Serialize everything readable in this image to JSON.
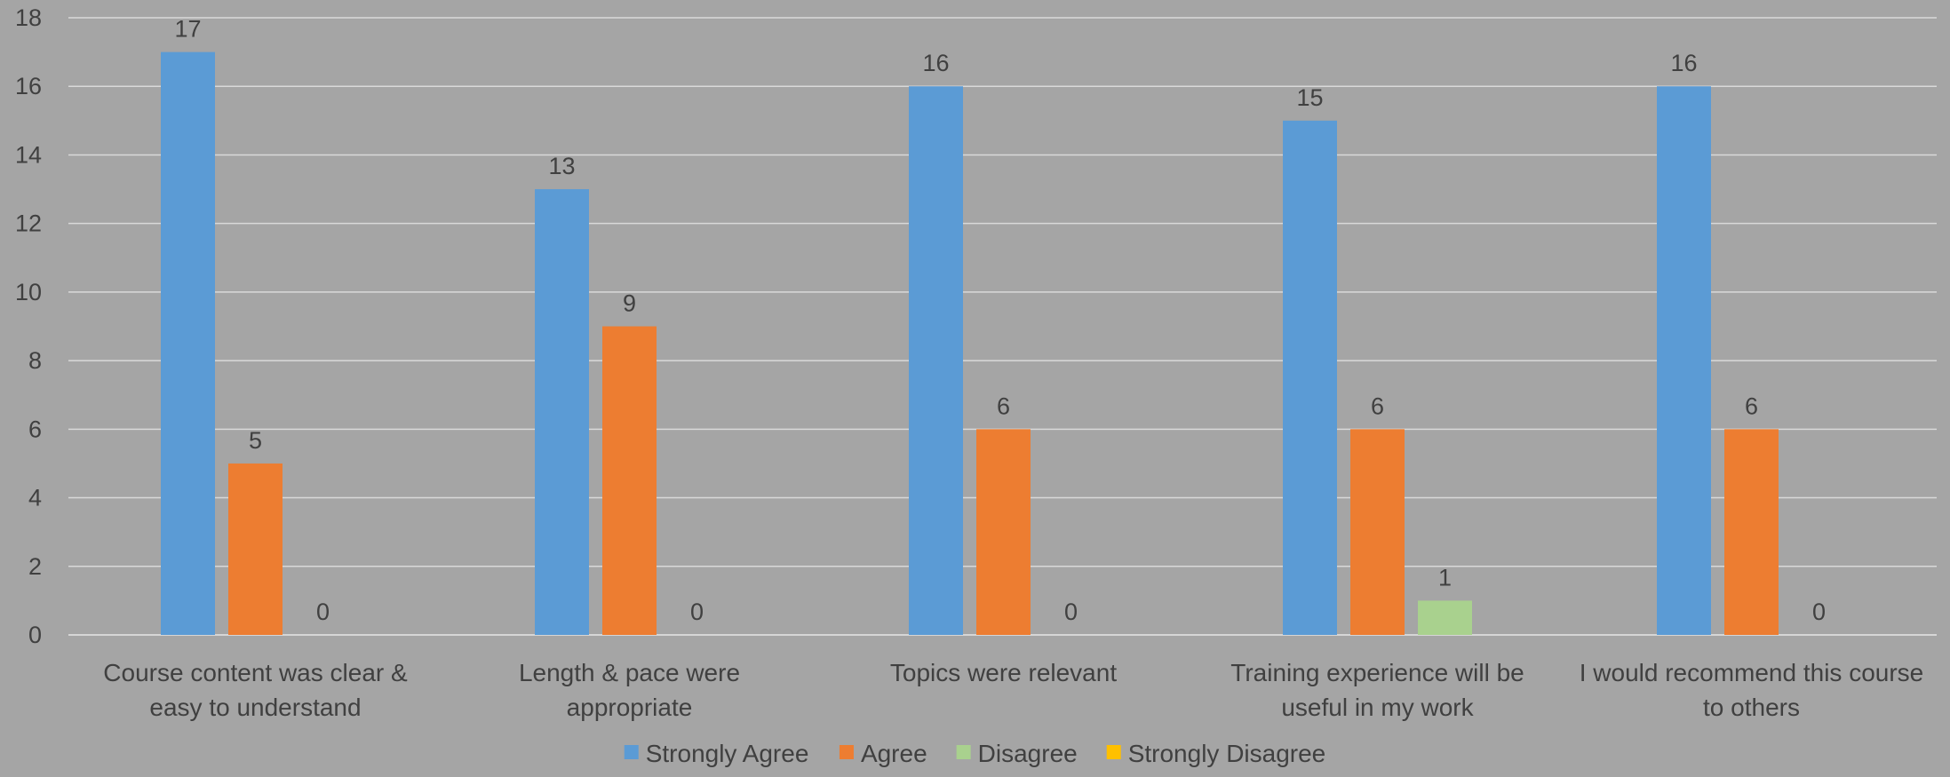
{
  "chart_data": {
    "type": "bar",
    "categories": [
      [
        "Course content was clear &",
        "easy to understand"
      ],
      [
        "Length & pace were",
        "appropriate"
      ],
      [
        "Topics were relevant"
      ],
      [
        "Training experience will be",
        "useful in my work"
      ],
      [
        "I would recommend this course",
        "to others"
      ]
    ],
    "series": [
      {
        "name": "Strongly Agree",
        "color": "#5b9bd5",
        "values": [
          17,
          13,
          16,
          15,
          16
        ]
      },
      {
        "name": "Agree",
        "color": "#ed7d31",
        "values": [
          5,
          9,
          6,
          6,
          6
        ]
      },
      {
        "name": "Disagree",
        "color": "#a9d18e",
        "values": [
          0,
          0,
          0,
          1,
          0
        ]
      },
      {
        "name": "Strongly Disagree",
        "color": "#ffc000",
        "values": [
          0,
          0,
          0,
          0,
          0
        ]
      }
    ],
    "data_labels": [
      [
        {
          "series": 0,
          "value": "17"
        },
        {
          "series": 1,
          "value": "5"
        },
        {
          "series": 2,
          "value": "0"
        }
      ],
      [
        {
          "series": 0,
          "value": "13"
        },
        {
          "series": 1,
          "value": "9"
        },
        {
          "series": 2,
          "value": "0"
        }
      ],
      [
        {
          "series": 0,
          "value": "16"
        },
        {
          "series": 1,
          "value": "6"
        },
        {
          "series": 2,
          "value": "0"
        }
      ],
      [
        {
          "series": 0,
          "value": "15"
        },
        {
          "series": 1,
          "value": "6"
        },
        {
          "series": 2,
          "value": "1"
        }
      ],
      [
        {
          "series": 0,
          "value": "16"
        },
        {
          "series": 1,
          "value": "6"
        },
        {
          "series": 2,
          "value": "0"
        }
      ]
    ],
    "ylim": [
      0,
      18
    ],
    "yticks": [
      0,
      2,
      4,
      6,
      8,
      10,
      12,
      14,
      16,
      18
    ],
    "grid": true,
    "legend_position": "bottom",
    "title": "",
    "xlabel": "",
    "ylabel": ""
  }
}
